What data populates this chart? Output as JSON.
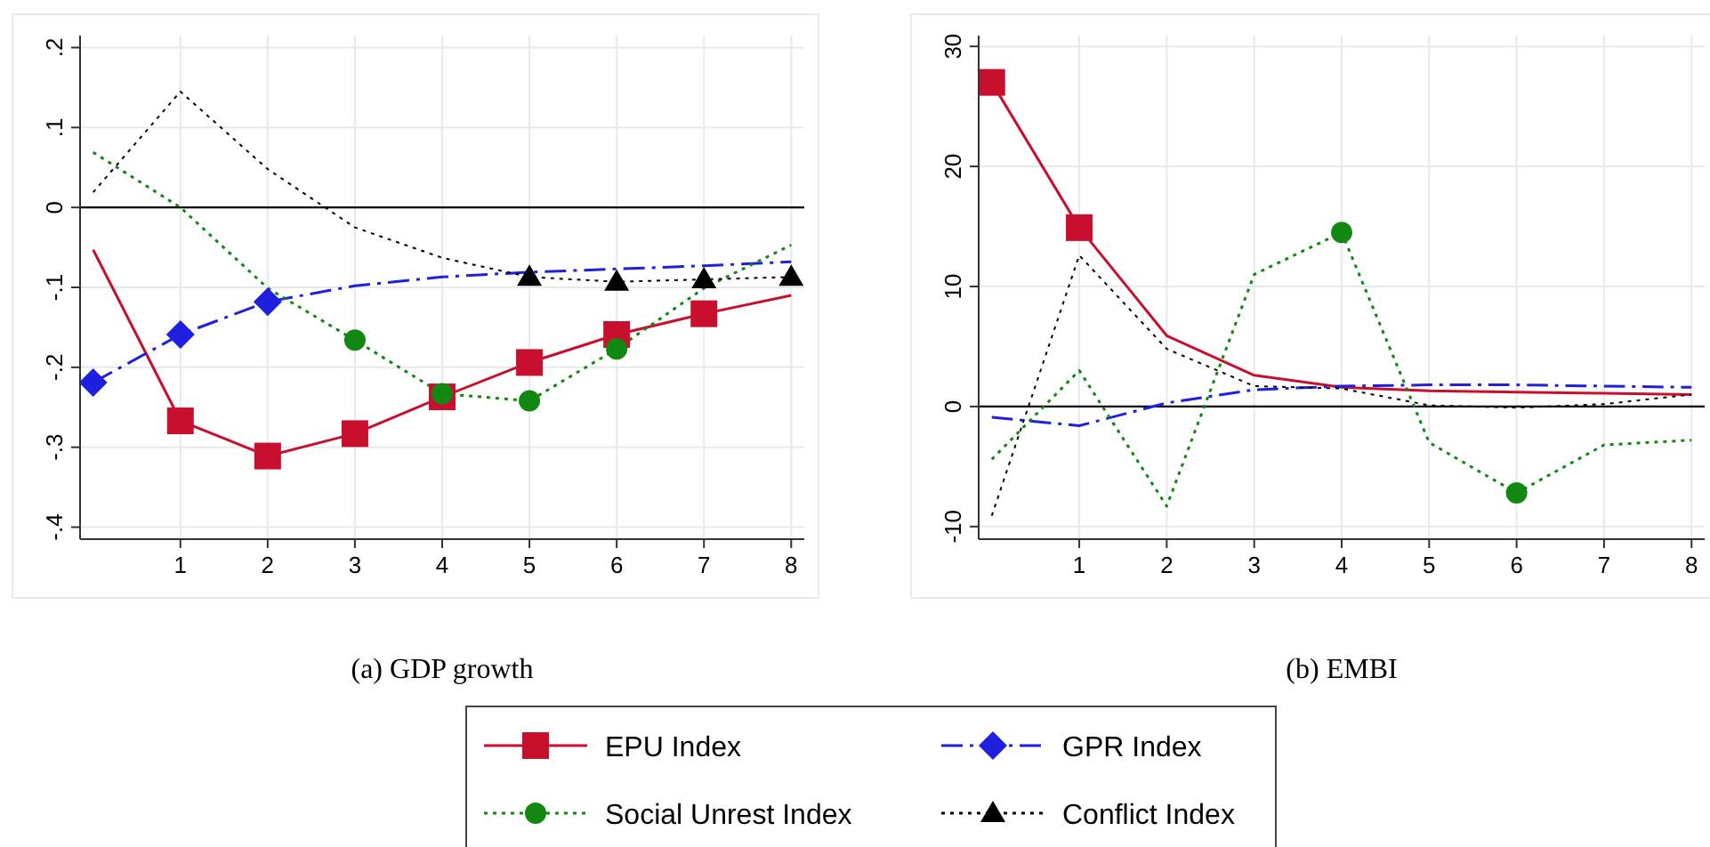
{
  "chart_data": [
    {
      "type": "line",
      "title": "(a) GDP growth",
      "x": [
        0,
        1,
        2,
        3,
        4,
        5,
        6,
        7,
        8
      ],
      "xlim": [
        -0.15,
        8.15
      ],
      "xticks": [
        1,
        2,
        3,
        4,
        5,
        6,
        7,
        8
      ],
      "ylim": [
        -0.415,
        0.215
      ],
      "yticks": [
        {
          "value": 0.2,
          "label": ".2"
        },
        {
          "value": 0.1,
          "label": ".1"
        },
        0,
        {
          "value": -0.1,
          "label": "-.1"
        },
        {
          "value": -0.2,
          "label": "-.2"
        },
        {
          "value": -0.3,
          "label": "-.3"
        },
        {
          "value": -0.4,
          "label": "-.4"
        }
      ],
      "grid": true,
      "legend": "bottom",
      "ref_lines": [
        {
          "axis": "y",
          "value": 0,
          "color": "#000000"
        }
      ],
      "series": [
        {
          "name": "EPU Index",
          "color": "#c8102e",
          "line_style": "solid",
          "values": [
            -0.053,
            -0.267,
            -0.311,
            -0.283,
            -0.237,
            -0.194,
            -0.159,
            -0.133,
            -0.11
          ]
        },
        {
          "name": "GPR Index",
          "color": "#1f1fe0",
          "line_style": "dashed",
          "values": [
            -0.219,
            -0.159,
            -0.118,
            -0.098,
            -0.087,
            -0.081,
            -0.077,
            -0.073,
            -0.068
          ]
        },
        {
          "name": "Social Unrest Index",
          "color": "#118811",
          "line_style": "dotted",
          "values": [
            0.069,
            0,
            -0.101,
            -0.166,
            -0.233,
            -0.242,
            -0.177,
            -0.101,
            -0.047
          ]
        },
        {
          "name": "Conflict Index",
          "color": "#000000",
          "line_style": "dotted",
          "values": [
            0.019,
            0.145,
            0.048,
            -0.025,
            -0.063,
            -0.087,
            -0.093,
            -0.09,
            -0.087
          ]
        },
        {
          "type": "scatter",
          "color": "#c8102e",
          "marker": "square",
          "x": [
            1,
            2,
            3,
            4,
            5,
            6,
            7
          ],
          "values": [
            -0.267,
            -0.311,
            -0.283,
            -0.237,
            -0.194,
            -0.159,
            -0.133
          ]
        },
        {
          "type": "scatter",
          "color": "#1f1fe0",
          "marker": "diamond",
          "x": [
            0,
            1,
            2
          ],
          "values": [
            -0.219,
            -0.159,
            -0.118
          ]
        },
        {
          "type": "scatter",
          "color": "#118811",
          "marker": "circle",
          "x": [
            3,
            4,
            5,
            6
          ],
          "values": [
            -0.166,
            -0.233,
            -0.242,
            -0.177
          ]
        },
        {
          "type": "scatter",
          "color": "#000000",
          "marker": "triangle",
          "x": [
            5,
            6,
            7,
            8
          ],
          "values": [
            -0.087,
            -0.093,
            -0.09,
            -0.087
          ]
        }
      ]
    },
    {
      "type": "line",
      "title": "(b) EMBI",
      "x": [
        0,
        1,
        2,
        3,
        4,
        5,
        6,
        7,
        8
      ],
      "xlim": [
        -0.15,
        8.15
      ],
      "xticks": [
        1,
        2,
        3,
        4,
        5,
        6,
        7,
        8
      ],
      "ylim": [
        -11.05,
        30.9
      ],
      "yticks": [
        -10,
        0,
        10,
        20,
        30
      ],
      "grid": true,
      "ref_lines": [
        {
          "axis": "y",
          "value": 0,
          "color": "#000000"
        }
      ],
      "series": [
        {
          "color": "#c8102e",
          "line_style": "solid",
          "values": [
            27.0,
            14.9,
            5.9,
            2.6,
            1.6,
            1.3,
            1.2,
            1.1,
            1.0
          ]
        },
        {
          "color": "#1f1fe0",
          "line_style": "dashed",
          "values": [
            -0.9,
            -1.6,
            0.3,
            1.4,
            1.7,
            1.8,
            1.8,
            1.7,
            1.6
          ]
        },
        {
          "color": "#118811",
          "line_style": "dotted",
          "values": [
            -4.4,
            3.0,
            -8.3,
            11.0,
            14.5,
            -3.0,
            -7.2,
            -3.2,
            -2.8
          ]
        },
        {
          "color": "#000000",
          "line_style": "dotted",
          "values": [
            -9.1,
            12.6,
            4.8,
            1.7,
            1.5,
            0.1,
            -0.1,
            0.2,
            1.0
          ]
        },
        {
          "type": "scatter",
          "color": "#c8102e",
          "marker": "square",
          "x": [
            0,
            1
          ],
          "values": [
            27.0,
            14.9
          ]
        },
        {
          "type": "scatter",
          "color": "#118811",
          "marker": "circle",
          "x": [
            4,
            6
          ],
          "values": [
            14.5,
            -7.2
          ]
        }
      ]
    }
  ]
}
